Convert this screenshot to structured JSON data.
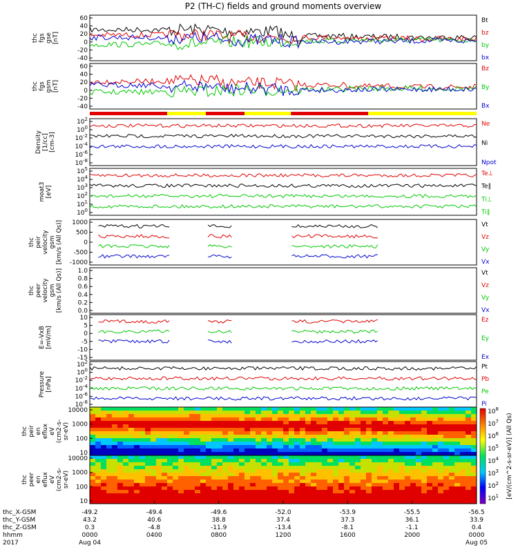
{
  "title": "P2 (TH-C) fields and ground moments overview",
  "colors": {
    "black": "#000000",
    "red": "#e00000",
    "green": "#00c800",
    "blue": "#0000d0",
    "yellow": "#ffff00"
  },
  "chart_data": {
    "type": "line",
    "time_range": [
      "2017-08-04 00:00",
      "2017-08-05 00:00"
    ],
    "panels": [
      {
        "ylabel": [
          "thc",
          "fgs",
          "gse",
          "[nT]"
        ],
        "yticks": [
          "60",
          "40",
          "20",
          "0",
          "-20",
          "-40"
        ],
        "series": [
          {
            "name": "Bt",
            "color": "black",
            "level": [
              30,
              30,
              25,
              12,
              10,
              8,
              8
            ]
          },
          {
            "name": "bz",
            "color": "red",
            "level": [
              15,
              15,
              10,
              8,
              5,
              4,
              3
            ]
          },
          {
            "name": "by",
            "color": "green",
            "level": [
              -12,
              -10,
              -5,
              -2,
              0,
              0,
              2
            ]
          },
          {
            "name": "bx",
            "color": "blue",
            "level": [
              8,
              6,
              0,
              -4,
              -3,
              -2,
              -2
            ]
          }
        ]
      },
      {
        "ylabel": [
          "thc",
          "fgs",
          "gsm",
          "[nT]"
        ],
        "yticks": [
          "60",
          "40",
          "20",
          "0",
          "-20",
          "-40"
        ],
        "series": [
          {
            "name": "Bz",
            "color": "red",
            "level": [
              20,
              22,
              15,
              10,
              6,
              4,
              4
            ]
          },
          {
            "name": "By",
            "color": "green",
            "level": [
              -10,
              -8,
              -5,
              -3,
              0,
              0,
              2
            ]
          },
          {
            "name": "Bx",
            "color": "blue",
            "level": [
              10,
              6,
              0,
              -4,
              -3,
              -2,
              -2
            ]
          }
        ]
      },
      {
        "ylabel": [
          "Density",
          "[1/cc]",
          "[cm-3]"
        ],
        "yticks": [
          "10^2",
          "10^0",
          "10^-2",
          "10^-4",
          "10^-6",
          "10^-8"
        ],
        "series": [
          {
            "name": "Ne",
            "color": "red"
          },
          {
            "name": "Ni",
            "color": "black"
          },
          {
            "name": "Npot",
            "color": "blue"
          }
        ]
      },
      {
        "ylabel": [
          "moat3",
          "[eV]"
        ],
        "yticks": [
          "10^5",
          "10^4",
          "10^3",
          "10^2",
          "10^1",
          "10^0"
        ],
        "series": [
          {
            "name": "Te⊥",
            "color": "red"
          },
          {
            "name": "Te∥",
            "color": "black"
          },
          {
            "name": "Ti⊥",
            "color": "green"
          },
          {
            "name": "Ti∥",
            "color": "green"
          }
        ]
      },
      {
        "ylabel": [
          "thc",
          "peir",
          "velocity",
          "gsm",
          "[km/s (All Qs)]"
        ],
        "yticks": [
          "1000",
          "500",
          "0",
          "-500",
          "-1000"
        ],
        "series": [
          {
            "name": "Vt",
            "color": "black"
          },
          {
            "name": "Vz",
            "color": "red"
          },
          {
            "name": "Vy",
            "color": "green"
          },
          {
            "name": "Vx",
            "color": "blue"
          }
        ]
      },
      {
        "ylabel": [
          "thc",
          "peer",
          "velocity",
          "gsm",
          "[km/s (All Qs)]"
        ],
        "yticks": [
          "1.0",
          "0.8",
          "0.6",
          "0.4",
          "0.2",
          "0.0"
        ],
        "series": [
          {
            "name": "Vt",
            "color": "black"
          },
          {
            "name": "Vz",
            "color": "red"
          },
          {
            "name": "Vy",
            "color": "green"
          },
          {
            "name": "Vx",
            "color": "blue"
          }
        ]
      },
      {
        "ylabel": [
          "E=-VxB",
          "[mV/m]"
        ],
        "yticks": [
          "10",
          "5",
          "0",
          "-5",
          "-10",
          "-15"
        ],
        "series": [
          {
            "name": "Ez",
            "color": "red"
          },
          {
            "name": "Ey",
            "color": "green"
          },
          {
            "name": "Ex",
            "color": "blue"
          }
        ]
      },
      {
        "ylabel": [
          "Pressure",
          "[nPa]"
        ],
        "yticks": [
          "10^2",
          "10^0",
          "10^-2",
          "10^-4",
          "10^-6",
          "10^-8"
        ],
        "series": [
          {
            "name": "Pt",
            "color": "black"
          },
          {
            "name": "Pb",
            "color": "red"
          },
          {
            "name": "Pe",
            "color": "green"
          },
          {
            "name": "Pi",
            "color": "blue"
          }
        ]
      },
      {
        "ylabel": [
          "thc",
          "peir",
          "en",
          "eflux",
          "eV",
          "(cm2-s-",
          "sr-eV)"
        ],
        "yticks": [
          "10000",
          "1000",
          "100",
          "10"
        ],
        "type": "spectrogram"
      },
      {
        "ylabel": [
          "thc",
          "peer",
          "en",
          "eflux",
          "eV",
          "(cm2-s-",
          "sr-eV)"
        ],
        "yticks": [
          "10000",
          "1000",
          "100",
          "10"
        ],
        "type": "spectrogram"
      }
    ],
    "mode_bar": [
      [
        "red",
        0,
        0.2
      ],
      [
        "yellow",
        0.2,
        0.3
      ],
      [
        "red",
        0.3,
        0.4
      ],
      [
        "yellow",
        0.4,
        0.52
      ],
      [
        "red",
        0.52,
        0.72
      ],
      [
        "yellow",
        0.72,
        1.0
      ]
    ],
    "colorbar": {
      "label": "[eV/(cm^2-s-sr-eV)] (All Qs)",
      "ticks": [
        "10^8",
        "10^7",
        "10^6",
        "10^5",
        "10^4",
        "10^3",
        "10^2",
        "10^1"
      ]
    },
    "x_axis": {
      "row_labels": [
        "thc_X-GSM",
        "thc_Y-GSM",
        "thc_Z-GSM",
        "hhmm",
        "2017"
      ],
      "ticks": [
        [
          "-49.2",
          "43.2",
          "0.3",
          "0000",
          "Aug 04"
        ],
        [
          "-49.4",
          "40.6",
          "-4.8",
          "0400",
          ""
        ],
        [
          "-49.6",
          "38.8",
          "-11.9",
          "0800",
          ""
        ],
        [
          "-52.0",
          "37.4",
          "-13.4",
          "1200",
          ""
        ],
        [
          "-53.9",
          "37.3",
          "-8.1",
          "1600",
          ""
        ],
        [
          "-55.5",
          "36.1",
          "-1.1",
          "2000",
          ""
        ],
        [
          "-56.5",
          "33.9",
          "0.4",
          "0000",
          "Aug 05"
        ]
      ]
    }
  }
}
